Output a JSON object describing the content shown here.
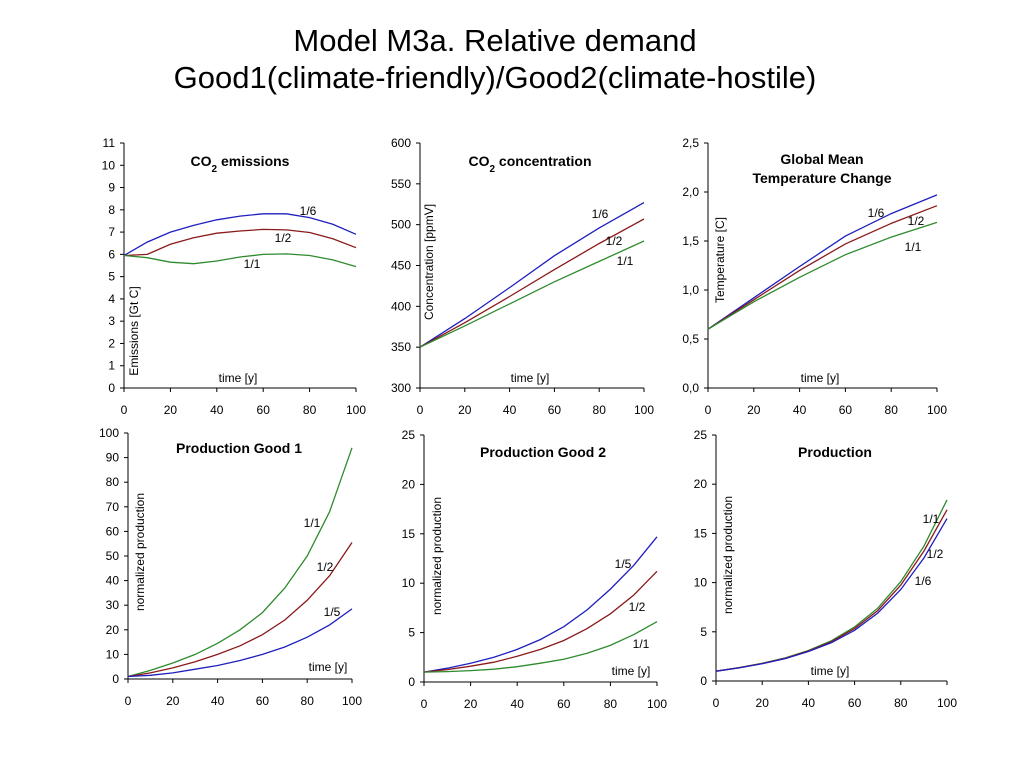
{
  "slide": {
    "title_line1": "Model  M3a. Relative demand",
    "title_line2": "Good1(climate-friendly)/Good2(climate-hostile)"
  },
  "chart_data": [
    {
      "type": "line",
      "title": "CO₂ emissions",
      "ylabel": "Emissions [Gt C]",
      "xlabel": "time [y]",
      "xlim": [
        0,
        100
      ],
      "ylim": [
        0,
        11
      ],
      "xticks": [
        0,
        20,
        40,
        60,
        80,
        100
      ],
      "yticks": [
        "0",
        "1",
        "2",
        "3",
        "4",
        "5",
        "6",
        "7",
        "8",
        "9",
        "10",
        "11"
      ],
      "x": [
        0,
        10,
        20,
        30,
        40,
        50,
        60,
        70,
        80,
        90,
        100
      ],
      "series": [
        {
          "name": "1/6",
          "color": "#1f1fbf",
          "values": [
            5.95,
            6.55,
            7.0,
            7.3,
            7.55,
            7.72,
            7.82,
            7.82,
            7.65,
            7.35,
            6.9
          ]
        },
        {
          "name": "1/2",
          "color": "#8b1a1a",
          "values": [
            5.95,
            6.0,
            6.45,
            6.75,
            6.95,
            7.05,
            7.12,
            7.1,
            6.98,
            6.7,
            6.3
          ]
        },
        {
          "name": "1/1",
          "color": "#2e8b2e",
          "values": [
            5.95,
            5.85,
            5.65,
            5.58,
            5.7,
            5.88,
            6.0,
            6.02,
            5.95,
            5.75,
            5.45
          ]
        }
      ]
    },
    {
      "type": "line",
      "title": "CO₂ concentration",
      "ylabel": "Concentration [ppmV]",
      "xlabel": "time [y]",
      "xlim": [
        0,
        100
      ],
      "ylim": [
        300,
        600
      ],
      "xticks": [
        0,
        20,
        40,
        60,
        80,
        100
      ],
      "yticks": [
        "300",
        "350",
        "400",
        "450",
        "500",
        "550",
        "600"
      ],
      "x": [
        0,
        20,
        40,
        60,
        80,
        100
      ],
      "series": [
        {
          "name": "1/6",
          "color": "#1f1fbf",
          "values": [
            350,
            385,
            423,
            462,
            496,
            527
          ]
        },
        {
          "name": "1/2",
          "color": "#8b1a1a",
          "values": [
            350,
            380,
            412,
            445,
            477,
            507
          ]
        },
        {
          "name": "1/1",
          "color": "#2e8b2e",
          "values": [
            350,
            376,
            403,
            430,
            455,
            480
          ]
        }
      ]
    },
    {
      "type": "line",
      "title": "Global Mean Temperature Change",
      "title_lines": [
        "Global Mean",
        "Temperature Change"
      ],
      "ylabel": "Temperature [C]",
      "xlabel": "time [y]",
      "xlim": [
        0,
        100
      ],
      "ylim": [
        0,
        2.5
      ],
      "xticks": [
        0,
        20,
        40,
        60,
        80,
        100
      ],
      "yticks": [
        "0,0",
        "0,5",
        "1,0",
        "1,5",
        "2,0",
        "2,5"
      ],
      "x": [
        0,
        20,
        40,
        60,
        80,
        100
      ],
      "series": [
        {
          "name": "1/6",
          "color": "#1f1fbf",
          "values": [
            0.6,
            0.92,
            1.24,
            1.55,
            1.78,
            1.97
          ]
        },
        {
          "name": "1/2",
          "color": "#8b1a1a",
          "values": [
            0.6,
            0.9,
            1.2,
            1.47,
            1.68,
            1.86
          ]
        },
        {
          "name": "1/1",
          "color": "#2e8b2e",
          "values": [
            0.6,
            0.88,
            1.13,
            1.36,
            1.54,
            1.69
          ]
        }
      ]
    },
    {
      "type": "line",
      "title": "Production Good 1",
      "ylabel": "normalized production",
      "xlabel": "time [y]",
      "xlim": [
        0,
        100
      ],
      "ylim": [
        0,
        100
      ],
      "xticks": [
        0,
        20,
        40,
        60,
        80,
        100
      ],
      "yticks": [
        "0",
        "10",
        "20",
        "30",
        "40",
        "50",
        "60",
        "70",
        "80",
        "90",
        "100"
      ],
      "x": [
        0,
        10,
        20,
        30,
        40,
        50,
        60,
        70,
        80,
        90,
        100
      ],
      "series": [
        {
          "name": "1/1",
          "color": "#2e8b2e",
          "values": [
            1,
            3.5,
            6.5,
            10,
            14.5,
            20,
            27,
            37,
            50,
            68,
            94
          ]
        },
        {
          "name": "1/2",
          "color": "#8b1a1a",
          "values": [
            1,
            2.5,
            4.5,
            7,
            10,
            13.5,
            18,
            24,
            32,
            42,
            55.5
          ]
        },
        {
          "name": "1/5",
          "color": "#1f1fbf",
          "values": [
            1,
            1.5,
            2.5,
            4,
            5.5,
            7.5,
            10,
            13,
            17,
            22,
            28.5
          ]
        }
      ]
    },
    {
      "type": "line",
      "title": "Production Good 2",
      "ylabel": "normalized production",
      "xlabel": "time [y]",
      "xlim": [
        0,
        100
      ],
      "ylim": [
        0,
        25
      ],
      "xticks": [
        0,
        20,
        40,
        60,
        80,
        100
      ],
      "yticks": [
        "0",
        "5",
        "10",
        "15",
        "20",
        "25"
      ],
      "x": [
        0,
        10,
        20,
        30,
        40,
        50,
        60,
        70,
        80,
        90,
        100
      ],
      "series": [
        {
          "name": "1/5",
          "color": "#1f1fbf",
          "values": [
            1,
            1.4,
            1.9,
            2.5,
            3.3,
            4.3,
            5.6,
            7.3,
            9.4,
            11.8,
            14.7
          ]
        },
        {
          "name": "1/2",
          "color": "#8b1a1a",
          "values": [
            1,
            1.25,
            1.6,
            2.0,
            2.6,
            3.3,
            4.2,
            5.4,
            6.9,
            8.8,
            11.2
          ]
        },
        {
          "name": "1/1",
          "color": "#2e8b2e",
          "values": [
            1,
            1.05,
            1.15,
            1.3,
            1.55,
            1.9,
            2.3,
            2.9,
            3.7,
            4.8,
            6.1
          ]
        }
      ]
    },
    {
      "type": "line",
      "title": "Production",
      "ylabel": "normalized production",
      "xlabel": "time [y]",
      "xlim": [
        0,
        100
      ],
      "ylim": [
        0,
        25
      ],
      "xticks": [
        0,
        20,
        40,
        60,
        80,
        100
      ],
      "yticks": [
        "0",
        "5",
        "10",
        "15",
        "20",
        "25"
      ],
      "x": [
        0,
        10,
        20,
        30,
        40,
        50,
        60,
        70,
        80,
        90,
        100
      ],
      "series": [
        {
          "name": "1/1",
          "color": "#2e8b2e",
          "values": [
            1,
            1.35,
            1.8,
            2.35,
            3.1,
            4.1,
            5.5,
            7.4,
            10.1,
            13.7,
            18.4
          ]
        },
        {
          "name": "1/2",
          "color": "#8b1a1a",
          "values": [
            1,
            1.35,
            1.78,
            2.32,
            3.05,
            4.0,
            5.35,
            7.15,
            9.75,
            13.2,
            17.4
          ]
        },
        {
          "name": "1/6",
          "color": "#1f1fbf",
          "values": [
            1,
            1.33,
            1.75,
            2.28,
            3.0,
            3.9,
            5.15,
            6.9,
            9.3,
            12.5,
            16.5
          ]
        }
      ]
    }
  ]
}
